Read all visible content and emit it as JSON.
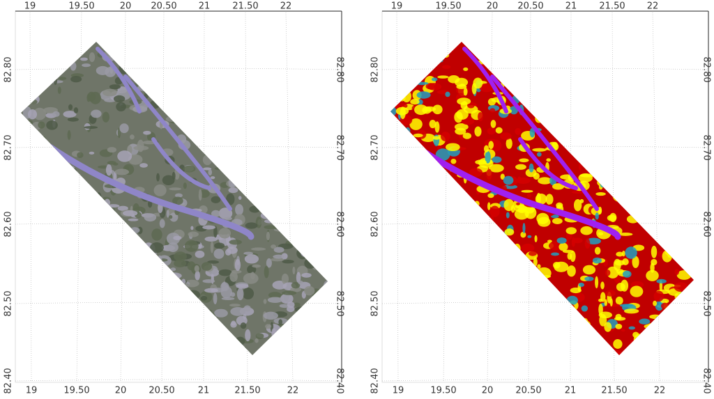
{
  "panels": [
    {
      "top_labels": [
        "19",
        "19.50",
        "20",
        "20.50",
        "21",
        "21.50",
        "22"
      ],
      "bottom_labels": [
        "19",
        "19.50",
        "20",
        "20.50",
        "21",
        "21.50",
        "22"
      ],
      "left_labels": [
        "82.80",
        "82.70",
        "82.60",
        "82.50",
        "82.40"
      ],
      "right_labels": [
        "82.80",
        "82.70",
        "82.60",
        "82.50",
        "82.40"
      ]
    },
    {
      "top_labels": [
        "19",
        "19.50",
        "20",
        "20.50",
        "21",
        "21.50",
        "22"
      ],
      "bottom_labels": [
        "19",
        "19.50",
        "20",
        "20.50",
        "21",
        "21.50",
        "22"
      ],
      "left_labels": [
        "82.80",
        "82.70",
        "82.60",
        "82.50",
        "82.40"
      ],
      "right_labels": [
        "82.80",
        "82.70",
        "82.60",
        "82.50",
        "82.40"
      ]
    }
  ]
}
